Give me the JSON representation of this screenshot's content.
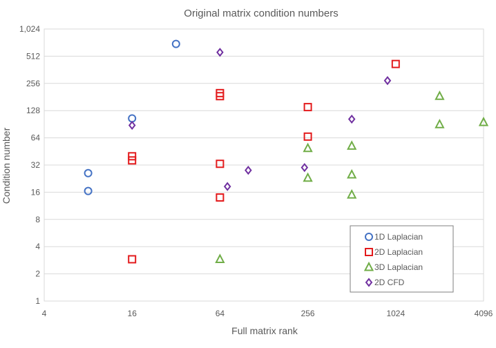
{
  "chart_data": {
    "type": "scatter",
    "title": "Original matrix condition numbers",
    "xlabel": "Full matrix rank",
    "ylabel": "Condition number",
    "x_scale": "log2",
    "y_scale": "log2",
    "xlim": [
      4,
      4096
    ],
    "ylim": [
      1,
      1024
    ],
    "x_ticks": [
      4,
      16,
      64,
      256,
      1024,
      4096
    ],
    "x_tick_labels": [
      "4",
      "16",
      "64",
      "256",
      "1024",
      "4096"
    ],
    "y_ticks": [
      1,
      2,
      4,
      8,
      16,
      32,
      64,
      128,
      256,
      512,
      1024
    ],
    "y_tick_labels": [
      "1",
      "2",
      "4",
      "8",
      "16",
      "32",
      "64",
      "128",
      "256",
      "512",
      "1,024"
    ],
    "grid": "horizontal",
    "legend_position": "bottom-right",
    "series": [
      {
        "name": "1D Laplacian",
        "marker": "circle",
        "color": "#4472C4",
        "points": [
          [
            8,
            26
          ],
          [
            8,
            16.5
          ],
          [
            16,
            105
          ],
          [
            32,
            700
          ]
        ]
      },
      {
        "name": "2D Laplacian",
        "marker": "square",
        "color": "#E31A1C",
        "points": [
          [
            16,
            40
          ],
          [
            16,
            36
          ],
          [
            16,
            2.9
          ],
          [
            64,
            200
          ],
          [
            64,
            185
          ],
          [
            64,
            33
          ],
          [
            64,
            14
          ],
          [
            256,
            140
          ],
          [
            256,
            66
          ],
          [
            1024,
            420
          ]
        ]
      },
      {
        "name": "3D Laplacian",
        "marker": "triangle",
        "color": "#70AD47",
        "points": [
          [
            256,
            49
          ],
          [
            256,
            23
          ],
          [
            512,
            52
          ],
          [
            512,
            25
          ],
          [
            512,
            15
          ],
          [
            64,
            2.9
          ],
          [
            2048,
            185
          ],
          [
            2048,
            90
          ],
          [
            4096,
            95
          ]
        ]
      },
      {
        "name": "2D CFD",
        "marker": "diamond",
        "color": "#7030A0",
        "points": [
          [
            16,
            88
          ],
          [
            64,
            565
          ],
          [
            72,
            18.5
          ],
          [
            100,
            28
          ],
          [
            243,
            30
          ],
          [
            512,
            103
          ],
          [
            900,
            275
          ]
        ]
      }
    ]
  }
}
